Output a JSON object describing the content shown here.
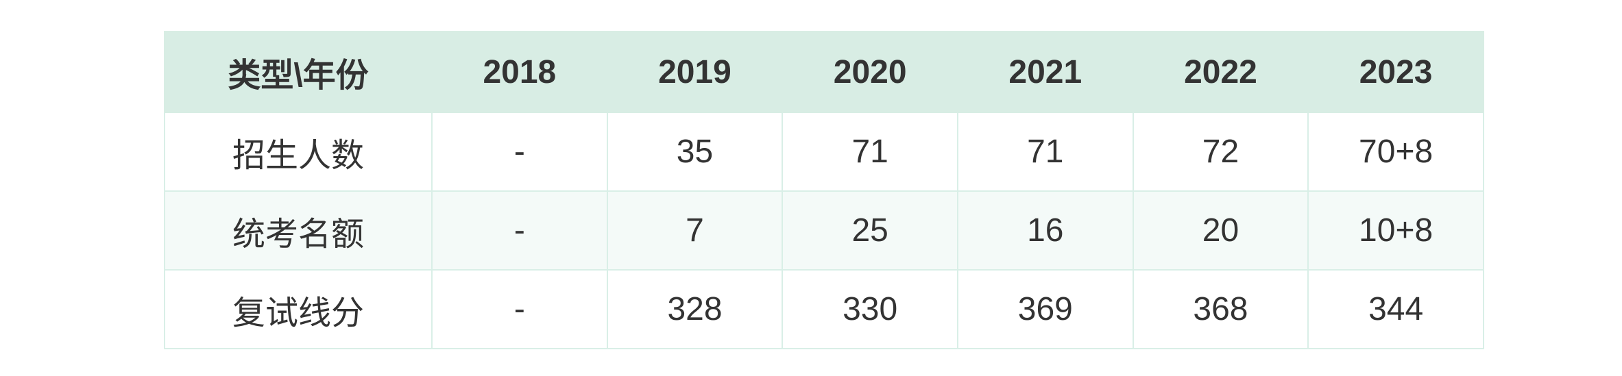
{
  "table": {
    "header": [
      "类型\\年份",
      "2018",
      "2019",
      "2020",
      "2021",
      "2022",
      "2023"
    ],
    "rows": [
      {
        "label": "招生人数",
        "values": [
          "-",
          "35",
          "71",
          "71",
          "72",
          "70+8"
        ]
      },
      {
        "label": "统考名额",
        "values": [
          "-",
          "7",
          "25",
          "16",
          "20",
          "10+8"
        ]
      },
      {
        "label": "复试线分",
        "values": [
          "-",
          "328",
          "330",
          "369",
          "368",
          "344"
        ]
      }
    ]
  },
  "colors": {
    "header_bg": "#d8ede4",
    "alt_row_bg": "#f4faf8",
    "border": "#d9efe7",
    "text": "#333333"
  }
}
